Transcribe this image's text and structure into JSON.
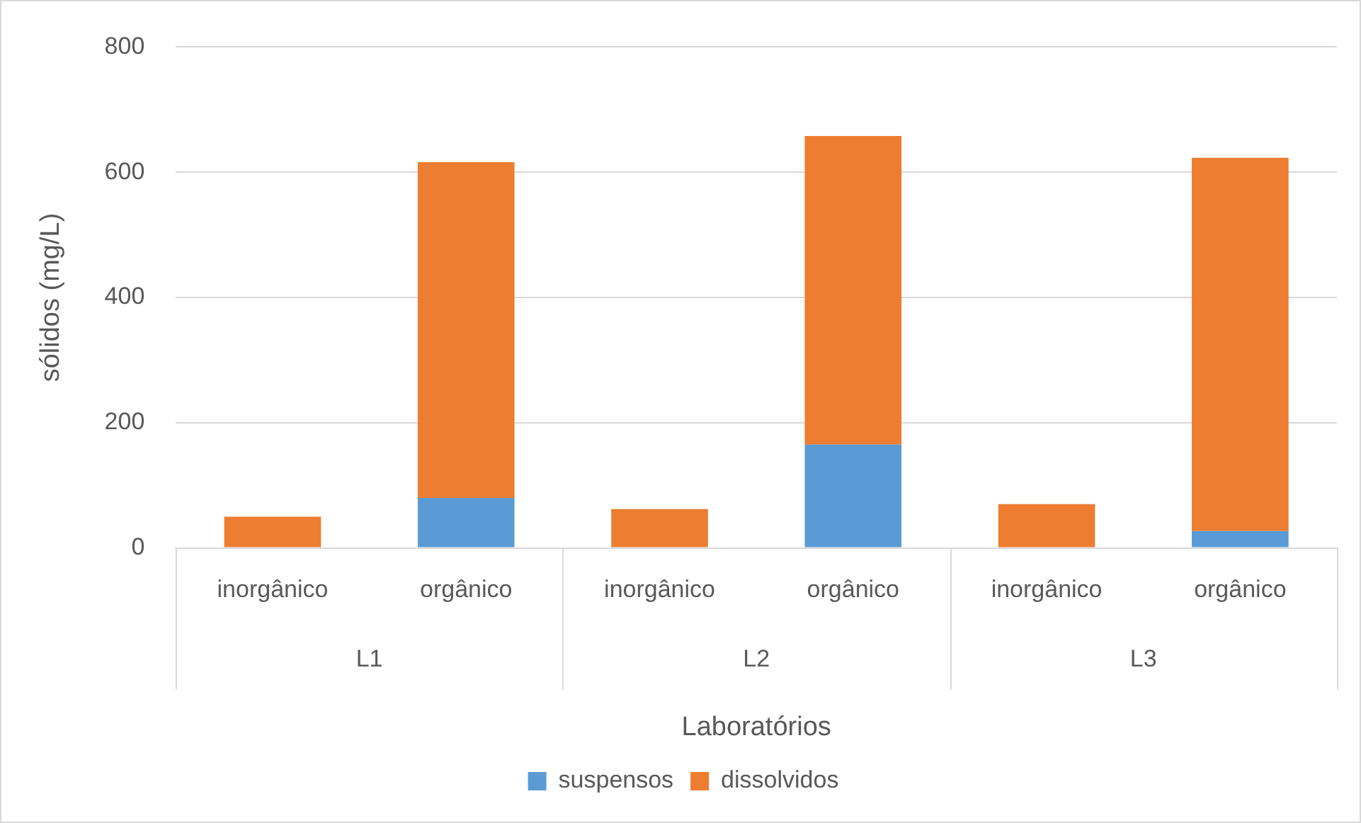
{
  "chart_data": {
    "type": "bar",
    "stacked": true,
    "ylabel": "sólidos (mg/L)",
    "xlabel": "Laboratórios",
    "categories": [
      "inorgânico",
      "orgânico",
      "inorgânico",
      "orgânico",
      "inorgânico",
      "orgânico"
    ],
    "annotations": [
      "L1",
      "L2",
      "L3"
    ],
    "series": [
      {
        "name": "suspensos",
        "color": "#5b9bd5",
        "values": [
          0,
          80,
          0,
          165,
          0,
          27
        ]
      },
      {
        "name": "dissolvidos",
        "color": "#ed7d31",
        "values": [
          50,
          536,
          62,
          493,
          70,
          596
        ]
      }
    ],
    "ylim": [
      0,
      800
    ],
    "yticks": [
      0,
      200,
      400,
      600,
      800
    ],
    "grid": "y",
    "legend": "bottom"
  }
}
